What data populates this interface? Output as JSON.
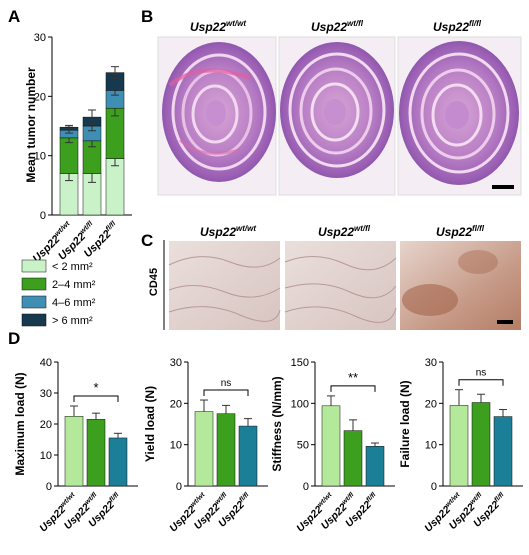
{
  "panels": {
    "A": {
      "letter": "A",
      "ylabel": "Mean tumor number",
      "legend": [
        "< 2 mm²",
        "2–4 mm²",
        "4–6 mm²",
        "> 6 mm²"
      ],
      "colors": [
        "#c9f2c9",
        "#3ca01e",
        "#3f8fb5",
        "#16394f"
      ]
    },
    "B": {
      "letter": "B"
    },
    "C": {
      "letter": "C",
      "row_label": "CD45"
    },
    "D": {
      "letter": "D"
    }
  },
  "genotypes": [
    {
      "base": "Usp22",
      "sup": "wt/wt"
    },
    {
      "base": "Usp22",
      "sup": "wt/fl"
    },
    {
      "base": "Usp22",
      "sup": "fl/fl"
    }
  ],
  "chart_data": [
    {
      "panel": "A",
      "type": "bar",
      "stacked": true,
      "categories": [
        "Usp22 wt/wt",
        "Usp22 wt/fl",
        "Usp22 fl/fl"
      ],
      "series": [
        {
          "name": "< 2 mm²",
          "values": [
            7,
            7,
            9.5
          ]
        },
        {
          "name": "2–4 mm²",
          "values": [
            6,
            5.5,
            8.5
          ]
        },
        {
          "name": "4–6 mm²",
          "values": [
            1.3,
            2.5,
            3
          ]
        },
        {
          "name": "> 6 mm²",
          "values": [
            0.5,
            1.5,
            3
          ]
        }
      ],
      "errors": [
        [
          1.2,
          1.5,
          1.2
        ],
        [
          0.8,
          1,
          1.3
        ],
        [
          0.5,
          0.8,
          0.8
        ],
        [
          0.3,
          1.2,
          1
        ]
      ],
      "ylabel": "Mean tumor number",
      "ylim": [
        0,
        30
      ],
      "yticks": [
        0,
        10,
        20,
        30
      ]
    },
    {
      "panel": "D",
      "type": "bar",
      "categories": [
        "Usp22 wt/wt",
        "Usp22 wt/fl",
        "Usp22 fl/fl"
      ],
      "values": [
        22.5,
        21.5,
        15.5
      ],
      "errors": [
        3.3,
        2,
        1.5
      ],
      "ylabel": "Maximum load (N)",
      "ylim": [
        0,
        40
      ],
      "yticks": [
        0,
        10,
        20,
        30,
        40
      ],
      "significance": {
        "from": 0,
        "to": 2,
        "label": "*"
      }
    },
    {
      "panel": "D",
      "type": "bar",
      "categories": [
        "Usp22 wt/wt",
        "Usp22 wt/fl",
        "Usp22 fl/fl"
      ],
      "values": [
        18,
        17.5,
        14.5
      ],
      "errors": [
        2.8,
        2,
        1.8
      ],
      "ylabel": "Yield load (N)",
      "ylim": [
        0,
        30
      ],
      "yticks": [
        0,
        10,
        20,
        30
      ],
      "significance": {
        "from": 0,
        "to": 2,
        "label": "ns"
      }
    },
    {
      "panel": "D",
      "type": "bar",
      "categories": [
        "Usp22 wt/wt",
        "Usp22 wt/fl",
        "Usp22 fl/fl"
      ],
      "values": [
        97,
        67,
        48
      ],
      "errors": [
        12,
        13,
        4
      ],
      "ylabel": "Stiffness (N/mm)",
      "ylim": [
        0,
        150
      ],
      "yticks": [
        0,
        50,
        100,
        150
      ],
      "significance": {
        "from": 0,
        "to": 2,
        "label": "**"
      }
    },
    {
      "panel": "D",
      "type": "bar",
      "categories": [
        "Usp22 wt/wt",
        "Usp22 wt/fl",
        "Usp22 fl/fl"
      ],
      "values": [
        19.5,
        20.2,
        16.8
      ],
      "errors": [
        3.8,
        2,
        1.7
      ],
      "ylabel": "Failure load (N)",
      "ylim": [
        0,
        30
      ],
      "yticks": [
        0,
        10,
        20,
        30
      ],
      "significance": {
        "from": 0,
        "to": 2,
        "label": "ns"
      }
    }
  ],
  "d_bar_colors": [
    "#b4e89a",
    "#3ca01e",
    "#1c7f98"
  ]
}
